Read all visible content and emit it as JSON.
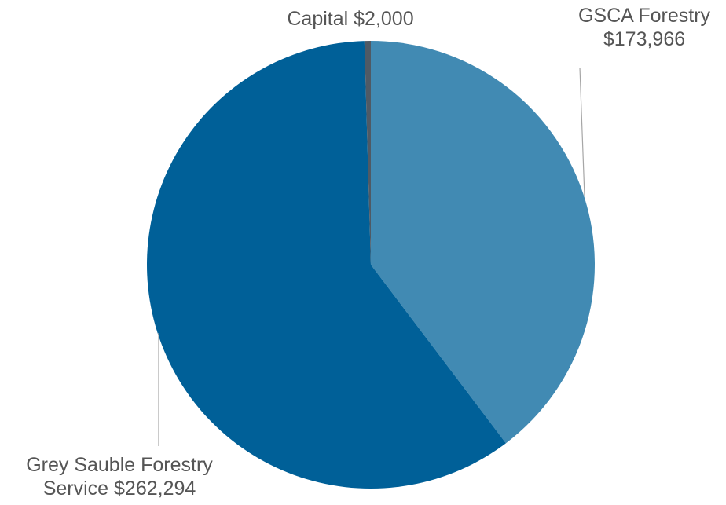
{
  "chart_data": {
    "type": "pie",
    "start_angle_deg": 0,
    "direction": "clockwise",
    "slices": [
      {
        "label": "GSCA Forestry",
        "value": 173966,
        "value_label": "$173,966",
        "label_lines": [
          "GSCA Forestry",
          "$173,966"
        ],
        "color": "#418ab3"
      },
      {
        "label": "Grey Sauble Forestry Service",
        "value": 262294,
        "value_label": "$262,294",
        "label_lines": [
          "Grey Sauble Forestry",
          "Service $262,294"
        ],
        "color": "#006098"
      },
      {
        "label": "Capital",
        "value": 2000,
        "value_label": "$2,000",
        "label_lines": [
          "Capital $2,000"
        ],
        "color": "#4f5a65"
      }
    ]
  }
}
